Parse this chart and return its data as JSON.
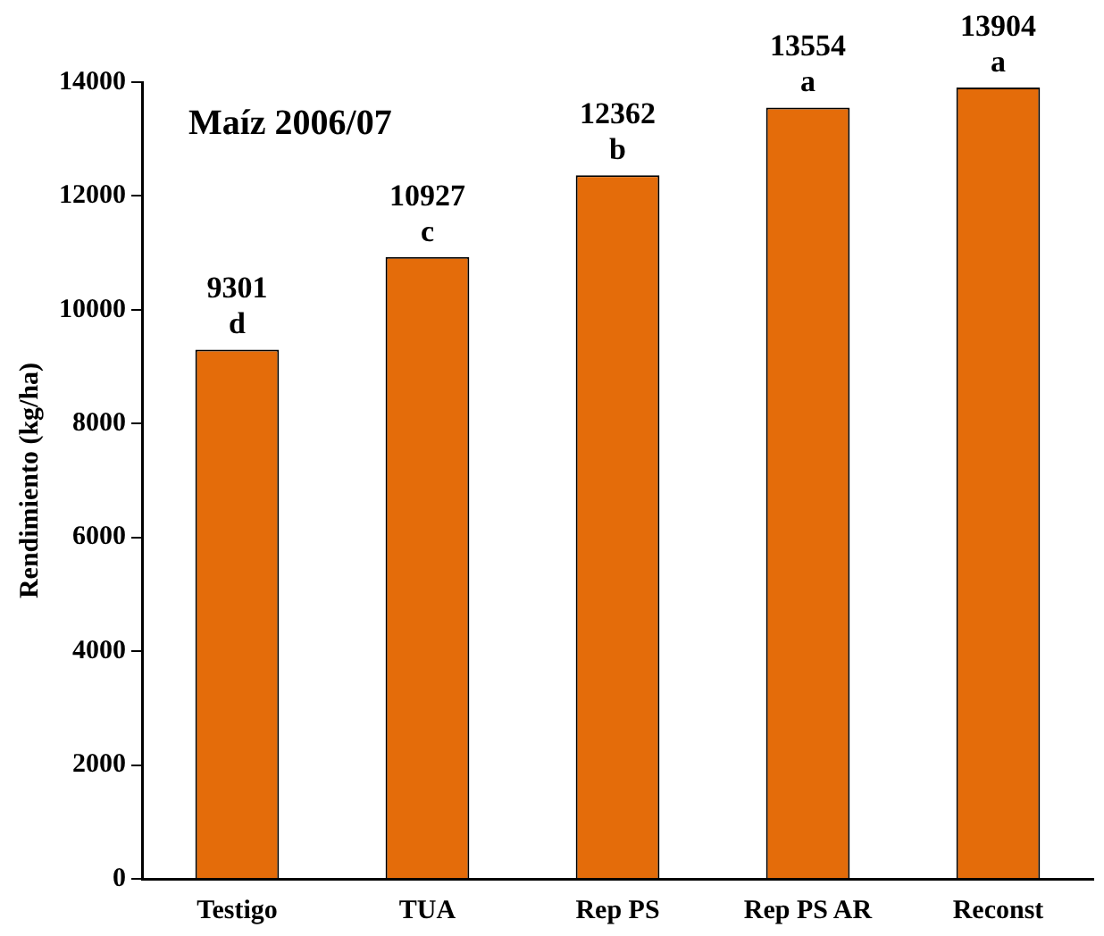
{
  "chart_data": {
    "type": "bar",
    "title": "Maíz 2006/07",
    "ylabel": "Rendimiento (kg/ha)",
    "categories": [
      "Testigo",
      "TUA",
      "Rep PS",
      "Rep PS AR",
      "Reconst"
    ],
    "values": [
      9301,
      10927,
      12362,
      13554,
      13904
    ],
    "color": "#e46c0a",
    "ylim": [
      0,
      14000
    ],
    "yticks": [
      0,
      2000,
      4000,
      6000,
      8000,
      10000,
      12000,
      14000
    ],
    "grid": false,
    "legend": false,
    "data_labels": true,
    "annotations": [
      {
        "text": "d",
        "x": "Testigo",
        "y": 9301
      },
      {
        "text": "c",
        "x": "TUA",
        "y": 10927
      },
      {
        "text": "b",
        "x": "Rep PS",
        "y": 12362
      },
      {
        "text": "a",
        "x": "Rep PS AR",
        "y": 13554
      },
      {
        "text": "a",
        "x": "Reconst",
        "y": 13904
      }
    ]
  }
}
